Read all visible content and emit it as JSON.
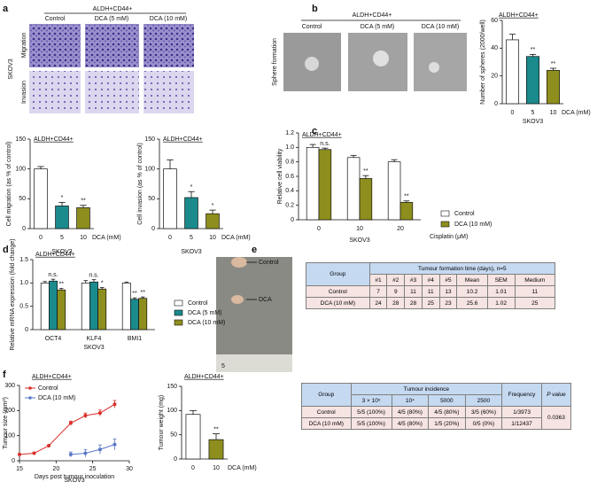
{
  "figure": {
    "panel_labels": [
      "a",
      "b",
      "c",
      "d",
      "e",
      "f"
    ]
  },
  "photos_a": {
    "header": "ALDH+CD44+",
    "columns": [
      "Control",
      "DCA (5 mM)",
      "DCA (10 mM)"
    ],
    "rows": [
      "Migration",
      "Invasion"
    ],
    "cell_line": "SKOV3"
  },
  "photos_b": {
    "header": "ALDH+CD44+",
    "columns": [
      "Control",
      "DCA (5 mM)",
      "DCA (10 mM)"
    ],
    "row": "Sphere formation"
  },
  "photo_e": {
    "labels": [
      "Control",
      "DCA"
    ],
    "ruler": "5"
  },
  "table_e": {
    "group": "Group",
    "title": "Tumour formation time (days), n=5",
    "columns": [
      "#1",
      "#2",
      "#3",
      "#4",
      "#5",
      "Mean",
      "SEM",
      "Medium"
    ],
    "rows": [
      [
        "Control",
        "7",
        "9",
        "11",
        "11",
        "13",
        "10.2",
        "1.01",
        "11"
      ],
      [
        "DCA (10 mM)",
        "24",
        "28",
        "28",
        "25",
        "23",
        "25.6",
        "1.02",
        "25"
      ]
    ]
  },
  "table_f": {
    "group": "Group",
    "title": "Tumour incidence",
    "columns": [
      "3 × 10⁵",
      "10⁴",
      "5000",
      "2500"
    ],
    "frequency": "Frequency",
    "pvalue": "P value",
    "rows": [
      [
        "Control",
        "5/5 (100%)",
        "4/5 (80%)",
        "4/5 (80%)",
        "3/5 (60%)",
        "1/3973"
      ],
      [
        "DCA (10 mM)",
        "5/5 (100%)",
        "4/5 (80%)",
        "1/5 (20%)",
        "0/5 (0%)",
        "1/12437"
      ]
    ],
    "p": "0.0363"
  },
  "chart_data": [
    {
      "type": "bar",
      "title": "ALDH+CD44+",
      "ylabel": "Cell migration (as % of control)",
      "xlabel": "DCA (mM)",
      "group": "SKOV3",
      "categories": [
        "0",
        "5",
        "10"
      ],
      "values": [
        100,
        38,
        35
      ],
      "errors": [
        4,
        6,
        4
      ],
      "annotations": [
        null,
        "*",
        "**"
      ],
      "colors": [
        "#ffffff",
        "#1b8a8c",
        "#8e8e1e"
      ],
      "ylim": [
        0,
        150
      ],
      "yticks": [
        0,
        50,
        100,
        150
      ]
    },
    {
      "type": "bar",
      "title": "ALDH+CD44+",
      "ylabel": "Cell invasion (as % of control)",
      "xlabel": "DCA (mM)",
      "group": "SKOV3",
      "categories": [
        "0",
        "5",
        "10"
      ],
      "values": [
        100,
        52,
        25
      ],
      "errors": [
        15,
        10,
        6
      ],
      "annotations": [
        null,
        "*",
        "*"
      ],
      "colors": [
        "#ffffff",
        "#1b8a8c",
        "#8e8e1e"
      ],
      "ylim": [
        0,
        150
      ],
      "yticks": [
        0,
        50,
        100,
        150
      ]
    },
    {
      "type": "bar",
      "title": "ALDH+CD44+",
      "ylabel": "Number of spheres (2000/well)",
      "xlabel": "DCA (mM)",
      "group": "SKOV3",
      "categories": [
        "0",
        "5",
        "10"
      ],
      "values": [
        46,
        34,
        24
      ],
      "errors": [
        4,
        1.5,
        1.5
      ],
      "annotations": [
        null,
        "**",
        "**"
      ],
      "colors": [
        "#ffffff",
        "#1b8a8c",
        "#8e8e1e"
      ],
      "ylim": [
        0,
        60
      ],
      "yticks": [
        0,
        20,
        40,
        60
      ]
    },
    {
      "type": "bar",
      "title": "ALDH+CD44+",
      "ylabel": "Relative cell viability",
      "xlabel": "Cisplatin (μM)",
      "group": "SKOV3",
      "categories": [
        "0",
        "10",
        "20"
      ],
      "series": [
        {
          "name": "Control",
          "color": "#ffffff",
          "values": [
            1.0,
            0.86,
            0.8
          ],
          "errors": [
            0.04,
            0.03,
            0.03
          ]
        },
        {
          "name": "DCA (10 mM)",
          "color": "#8e8e1e",
          "values": [
            0.97,
            0.57,
            0.24
          ],
          "errors": [
            0.02,
            0.04,
            0.02
          ],
          "annotations": [
            "n.s.",
            "**",
            "**"
          ]
        }
      ],
      "ylim": [
        0,
        1.2
      ],
      "yticks": [
        0,
        0.2,
        0.4,
        0.6,
        0.8,
        {
          "value": 1,
          "label": "1.0"
        },
        1.2
      ]
    },
    {
      "type": "bar",
      "title": "ALDH+CD44+",
      "ylabel": "Relative mRNA expression (fold change)",
      "group": "SKOV3",
      "categories": [
        "OCT4",
        "KLF4",
        "BMI1"
      ],
      "series": [
        {
          "name": "Control",
          "color": "#ffffff",
          "values": [
            1,
            1,
            1
          ],
          "errors": [
            0.03,
            0.05,
            0.02
          ]
        },
        {
          "name": "DCA (5 mM)",
          "color": "#1b8a8c",
          "values": [
            1.04,
            1.02,
            0.65
          ],
          "errors": [
            0.04,
            0.05,
            0.03
          ],
          "annotations": [
            "n.s.",
            "n.s.",
            "**"
          ]
        },
        {
          "name": "DCA (10 mM)",
          "color": "#8e8e1e",
          "values": [
            0.85,
            0.87,
            0.67
          ],
          "errors": [
            0.03,
            0.03,
            0.03
          ],
          "annotations": [
            "**",
            "*",
            "**"
          ]
        }
      ],
      "ylim": [
        0,
        1.5
      ],
      "yticks": [
        0,
        0.5,
        {
          "value": 1,
          "label": "1.0"
        },
        1.5
      ]
    },
    {
      "type": "line",
      "title": "ALDH+CD44+",
      "ylabel": "Tumour size (mm³)",
      "xlabel": "Days post tumour inoculation",
      "group": "SKOV3",
      "xlim": [
        15,
        30
      ],
      "xticks": [
        15,
        20,
        25,
        30
      ],
      "ylim": [
        0,
        300
      ],
      "yticks": [
        0,
        100,
        200,
        300
      ],
      "series": [
        {
          "name": "Control",
          "color": "#d9302a",
          "x": [
            15,
            17,
            19,
            22,
            24,
            26,
            28
          ],
          "values": [
            25,
            30,
            60,
            150,
            180,
            190,
            225
          ],
          "errors": [
            2,
            3,
            4,
            8,
            10,
            12,
            15
          ]
        },
        {
          "name": "DCA (10 mM)",
          "color": "#5a78c8",
          "x": [
            22,
            24,
            26,
            28
          ],
          "values": [
            25,
            30,
            45,
            65
          ],
          "errors": [
            10,
            15,
            18,
            22
          ]
        }
      ]
    },
    {
      "type": "bar",
      "title": "ALDH+CD44+",
      "ylabel": "Tumour weight (mg)",
      "xlabel": "DCA (mM)",
      "categories": [
        "0",
        "10"
      ],
      "values": [
        92,
        40
      ],
      "errors": [
        8,
        12
      ],
      "annotations": [
        null,
        "**"
      ],
      "colors": [
        "#ffffff",
        "#8e8e1e"
      ],
      "ylim": [
        0,
        150
      ],
      "yticks": [
        0,
        50,
        100,
        150
      ]
    }
  ]
}
